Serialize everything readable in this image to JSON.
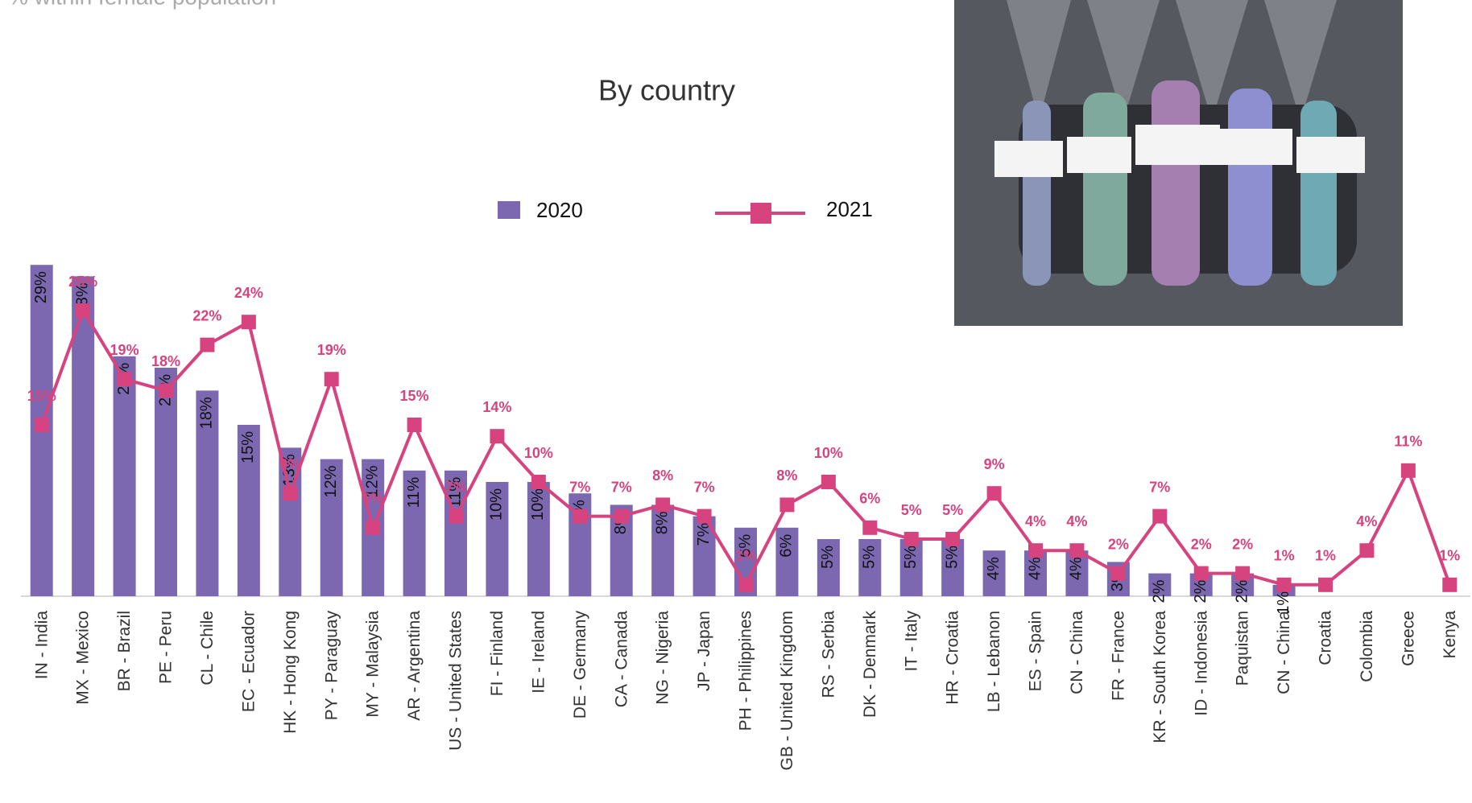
{
  "chart_data": {
    "type": "bar-line",
    "subtitle": "% within female population",
    "title": "By country",
    "categories": [
      "IN - India",
      "MX - Mexico",
      "BR - Brazil",
      "PE - Peru",
      "CL - Chile",
      "EC - Ecuador",
      "HK - Hong Kong",
      "PY - Paraguay",
      "MY - Malaysia",
      "AR - Argentina",
      "US - United States",
      "FI - Finland",
      "IE - Ireland",
      "DE - Germany",
      "CA - Canada",
      "NG - Nigeria",
      "JP - Japan",
      "PH - Philippines",
      "GB - United Kingdom",
      "RS - Serbia",
      "DK - Denmark",
      "IT - Italy",
      "HR - Croatia",
      "LB - Lebanon",
      "ES - Spain",
      "CN - China",
      "FR - France",
      "KR - South Korea",
      "ID - Indonesia",
      "Paquistan",
      "CN - China",
      "Croatia",
      "Colombia",
      "Greece",
      "Kenya"
    ],
    "series": [
      {
        "name": "2020",
        "color": "#7b68b0",
        "kind": "bar",
        "values": [
          29,
          28,
          21,
          20,
          18,
          15,
          13,
          12,
          12,
          11,
          11,
          10,
          10,
          9,
          8,
          8,
          7,
          6,
          6,
          5,
          5,
          5,
          5,
          4,
          4,
          4,
          3,
          2,
          2,
          2,
          1,
          null,
          null,
          null,
          null
        ],
        "value_labels": [
          "29%",
          "28%",
          "21%",
          "20%",
          "18%",
          "15%",
          "13%",
          "12%",
          "12%",
          "11%",
          "11%",
          "10%",
          "10%",
          "9%",
          "8%",
          "8%",
          "7%",
          "6%",
          "6%",
          "5%",
          "5%",
          "5%",
          "5%",
          "4%",
          "4%",
          "4%",
          "3%",
          "2%",
          "2%",
          "2%",
          "1%",
          null,
          null,
          null,
          null
        ]
      },
      {
        "name": "2021",
        "color": "#d6437f",
        "kind": "line",
        "values": [
          15,
          25,
          19,
          18,
          22,
          24,
          9,
          19,
          6,
          15,
          7,
          14,
          10,
          7,
          7,
          8,
          7,
          1,
          8,
          10,
          6,
          5,
          5,
          9,
          4,
          4,
          2,
          7,
          2,
          2,
          1,
          1,
          4,
          11,
          1
        ],
        "value_labels": [
          "15%",
          "25%",
          "19%",
          "18%",
          "22%",
          "24%",
          "9%",
          "19%",
          "6%",
          "15%",
          "7%",
          "14%",
          "10%",
          "7%",
          "7%",
          "8%",
          "7%",
          "1%",
          "8%",
          "10%",
          "6%",
          "5%",
          "5%",
          "9%",
          "4%",
          "4%",
          "2%",
          "7%",
          "2%",
          "2%",
          "1%",
          "1%",
          "4%",
          "11%",
          "1%"
        ]
      }
    ],
    "ylim": [
      0,
      30
    ]
  }
}
